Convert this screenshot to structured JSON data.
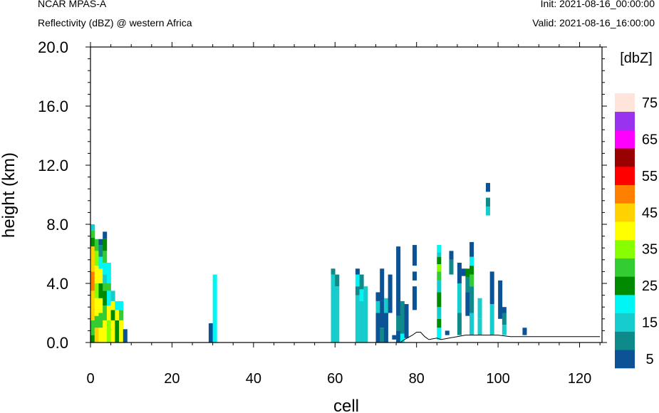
{
  "header": {
    "left_title": "NCAR MPAS-A",
    "left_subtitle": "Reflectivity (dBZ) @ western Africa",
    "right_title": "Init: 2021-08-16_00:00:00",
    "right_subtitle": "Valid: 2021-08-16_16:00:00"
  },
  "chart_data": {
    "type": "heatmap",
    "xlabel": "cell",
    "ylabel": "height (km)",
    "xlim": [
      0,
      125.5
    ],
    "ylim": [
      0,
      20
    ],
    "x_ticks": [
      0,
      20,
      40,
      60,
      80,
      100,
      120
    ],
    "y_ticks": [
      0,
      4,
      8,
      12,
      16,
      20
    ],
    "y_tick_labels": [
      "0.0",
      "4.0",
      "8.0",
      "12.0",
      "16.0",
      "20.0"
    ],
    "cell_width": 1,
    "colorbar": {
      "title": "[dbZ]",
      "levels": [
        5,
        10,
        15,
        20,
        25,
        30,
        35,
        40,
        45,
        50,
        55,
        60,
        65,
        70,
        75
      ],
      "tick_labels": [
        "5",
        "15",
        "25",
        "35",
        "45",
        "55",
        "65",
        "75"
      ],
      "colors": [
        "#0b5394",
        "#0f8a8a",
        "#17cccc",
        "#00f5f5",
        "#008a00",
        "#33cc33",
        "#88ff00",
        "#ffff00",
        "#ffd200",
        "#ff8000",
        "#ff0000",
        "#990000",
        "#ff00ff",
        "#9933ee",
        "#ffe4dc"
      ]
    },
    "terrain": [
      [
        0,
        0
      ],
      [
        76,
        0
      ],
      [
        77,
        0.2
      ],
      [
        79,
        0.5
      ],
      [
        80,
        0.7
      ],
      [
        81,
        0.7
      ],
      [
        82,
        0.4
      ],
      [
        83,
        0.2
      ],
      [
        85,
        0.3
      ],
      [
        86,
        0.2
      ],
      [
        88,
        0.3
      ],
      [
        90,
        0.4
      ],
      [
        92,
        0.5
      ],
      [
        95,
        0.5
      ],
      [
        98,
        0.5
      ],
      [
        100,
        0.5
      ],
      [
        103,
        0.4
      ],
      [
        106,
        0.4
      ],
      [
        110,
        0.4
      ],
      [
        115,
        0.4
      ],
      [
        120,
        0.4
      ],
      [
        125,
        0.4
      ]
    ],
    "columns": [
      {
        "x": 0,
        "bins": [
          [
            0,
            0.5,
            25
          ],
          [
            0.5,
            1.5,
            30
          ],
          [
            1.5,
            2.2,
            45
          ],
          [
            2.2,
            3.5,
            45
          ],
          [
            3.5,
            4.8,
            50
          ],
          [
            4.8,
            6.5,
            45
          ],
          [
            6.5,
            7.1,
            25
          ],
          [
            7.1,
            7.6,
            30
          ],
          [
            7.6,
            8.0,
            15
          ]
        ]
      },
      {
        "x": 1,
        "bins": [
          [
            0,
            1.0,
            45
          ],
          [
            1.0,
            1.8,
            30
          ],
          [
            1.8,
            3.0,
            40
          ],
          [
            3.0,
            4.0,
            35
          ],
          [
            4.0,
            5.2,
            40
          ],
          [
            5.2,
            6.2,
            35
          ],
          [
            6.2,
            7.0,
            30
          ]
        ]
      },
      {
        "x": 2,
        "bins": [
          [
            0,
            1.0,
            40
          ],
          [
            1.0,
            2.0,
            30
          ],
          [
            2.0,
            3.0,
            40
          ],
          [
            3.0,
            4.0,
            25
          ],
          [
            4.0,
            5.0,
            40
          ],
          [
            5.0,
            5.8,
            20
          ],
          [
            5.8,
            6.6,
            10
          ],
          [
            6.6,
            7.0,
            5
          ]
        ]
      },
      {
        "x": 3,
        "bins": [
          [
            0,
            1.5,
            40
          ],
          [
            1.5,
            2.5,
            30
          ],
          [
            2.5,
            3.5,
            25
          ],
          [
            3.5,
            4.0,
            30
          ],
          [
            4.0,
            4.6,
            15
          ],
          [
            4.6,
            5.4,
            20
          ],
          [
            5.4,
            6.2,
            30
          ],
          [
            6.2,
            7.0,
            25
          ],
          [
            7.0,
            7.5,
            5
          ]
        ]
      },
      {
        "x": 4,
        "bins": [
          [
            0,
            1.5,
            35
          ],
          [
            1.5,
            2.5,
            40
          ],
          [
            2.5,
            3.5,
            20
          ],
          [
            3.5,
            4.0,
            30
          ],
          [
            4.0,
            5.4,
            20
          ]
        ]
      },
      {
        "x": 5,
        "bins": [
          [
            0,
            1.5,
            40
          ],
          [
            1.5,
            2.2,
            25
          ],
          [
            2.2,
            2.8,
            40
          ],
          [
            2.8,
            3.5,
            15
          ]
        ]
      },
      {
        "x": 6,
        "bins": [
          [
            0,
            1.5,
            25
          ],
          [
            1.5,
            2.2,
            40
          ],
          [
            2.2,
            2.8,
            20
          ]
        ]
      },
      {
        "x": 7,
        "bins": [
          [
            0,
            1.5,
            40
          ],
          [
            1.5,
            2.2,
            30
          ],
          [
            2.2,
            2.8,
            20
          ]
        ]
      },
      {
        "x": 8,
        "bins": [
          [
            0,
            0.9,
            5
          ]
        ]
      },
      {
        "x": 29,
        "bins": [
          [
            0,
            1.3,
            5
          ]
        ]
      },
      {
        "x": 30,
        "bins": [
          [
            0,
            4.6,
            20
          ]
        ]
      },
      {
        "x": 59,
        "bins": [
          [
            0,
            4.6,
            15
          ],
          [
            4.6,
            5.0,
            10
          ]
        ]
      },
      {
        "x": 60,
        "bins": [
          [
            0,
            3.8,
            15
          ],
          [
            3.8,
            4.6,
            10
          ]
        ]
      },
      {
        "x": 65,
        "bins": [
          [
            0,
            3.2,
            15
          ],
          [
            3.2,
            3.8,
            10
          ],
          [
            3.8,
            4.6,
            20
          ],
          [
            4.6,
            5.0,
            5
          ]
        ]
      },
      {
        "x": 66,
        "bins": [
          [
            0,
            2.8,
            15
          ],
          [
            2.8,
            3.6,
            20
          ],
          [
            3.6,
            4.6,
            10
          ]
        ]
      },
      {
        "x": 67,
        "bins": [
          [
            0,
            3.8,
            15
          ]
        ]
      },
      {
        "x": 70,
        "bins": [
          [
            0,
            2.0,
            5
          ],
          [
            2.0,
            2.8,
            15
          ],
          [
            2.8,
            3.4,
            5
          ]
        ]
      },
      {
        "x": 71,
        "bins": [
          [
            0,
            1.0,
            10
          ],
          [
            1.0,
            2.8,
            5
          ],
          [
            2.8,
            5.0,
            5
          ]
        ]
      },
      {
        "x": 72,
        "bins": [
          [
            0,
            2.0,
            5
          ],
          [
            2.0,
            3.0,
            15
          ]
        ]
      },
      {
        "x": 73,
        "bins": [
          [
            2.0,
            4.6,
            5
          ]
        ]
      },
      {
        "x": 74,
        "bins": [
          [
            0.2,
            0.5,
            5
          ]
        ]
      },
      {
        "x": 75,
        "bins": [
          [
            0,
            0.8,
            5
          ],
          [
            0.8,
            1.8,
            10
          ],
          [
            1.8,
            4.0,
            5
          ],
          [
            4.0,
            6.5,
            5
          ]
        ]
      },
      {
        "x": 76,
        "bins": [
          [
            0,
            0.6,
            20
          ],
          [
            0.6,
            2.8,
            10
          ]
        ]
      },
      {
        "x": 77,
        "bins": [
          [
            0.3,
            2.6,
            5
          ]
        ]
      },
      {
        "x": 79,
        "bins": [
          [
            2.2,
            3.8,
            5
          ],
          [
            4.2,
            4.8,
            5
          ],
          [
            5.2,
            6.6,
            5
          ]
        ]
      },
      {
        "x": 85,
        "bins": [
          [
            0.2,
            1.0,
            20
          ],
          [
            1.0,
            1.6,
            25
          ],
          [
            1.6,
            2.4,
            15
          ],
          [
            2.4,
            3.4,
            25
          ],
          [
            3.4,
            4.2,
            15
          ],
          [
            4.2,
            4.8,
            30
          ],
          [
            4.8,
            5.3,
            35
          ],
          [
            5.3,
            5.8,
            25
          ],
          [
            5.8,
            6.1,
            15
          ],
          [
            6.1,
            6.6,
            20
          ]
        ]
      },
      {
        "x": 87,
        "bins": [
          [
            0.5,
            0.8,
            5
          ]
        ]
      },
      {
        "x": 88,
        "bins": [
          [
            4.6,
            5.6,
            10
          ],
          [
            5.6,
            6.2,
            5
          ]
        ]
      },
      {
        "x": 90,
        "bins": [
          [
            0.5,
            2.0,
            10
          ],
          [
            2.0,
            4.0,
            15
          ],
          [
            4.0,
            5.4,
            5
          ]
        ]
      },
      {
        "x": 91,
        "bins": [
          [
            4.5,
            5.0,
            5
          ]
        ]
      },
      {
        "x": 92,
        "bins": [
          [
            1.8,
            3.4,
            5
          ],
          [
            3.4,
            4.4,
            10
          ],
          [
            4.4,
            5.0,
            25
          ]
        ]
      },
      {
        "x": 93,
        "bins": [
          [
            0.5,
            2.0,
            15
          ],
          [
            2.0,
            3.8,
            10
          ],
          [
            3.8,
            4.6,
            30
          ],
          [
            4.6,
            5.2,
            25
          ],
          [
            5.2,
            5.8,
            20
          ],
          [
            5.8,
            6.8,
            5
          ]
        ]
      },
      {
        "x": 95,
        "bins": [
          [
            0.5,
            1.6,
            15
          ],
          [
            1.6,
            3.0,
            15
          ]
        ]
      },
      {
        "x": 97,
        "bins": [
          [
            8.6,
            9.2,
            15
          ],
          [
            9.2,
            9.8,
            10
          ],
          [
            10.2,
            10.8,
            5
          ]
        ]
      },
      {
        "x": 98,
        "bins": [
          [
            0.5,
            2.6,
            15
          ],
          [
            2.6,
            4.8,
            5
          ]
        ]
      },
      {
        "x": 100,
        "bins": [
          [
            1.6,
            4.2,
            5
          ]
        ]
      },
      {
        "x": 101,
        "bins": [
          [
            0.5,
            1.2,
            15
          ],
          [
            1.2,
            2.0,
            10
          ],
          [
            2.0,
            2.4,
            5
          ]
        ]
      },
      {
        "x": 106,
        "bins": [
          [
            0.5,
            1.0,
            5
          ]
        ]
      }
    ]
  }
}
